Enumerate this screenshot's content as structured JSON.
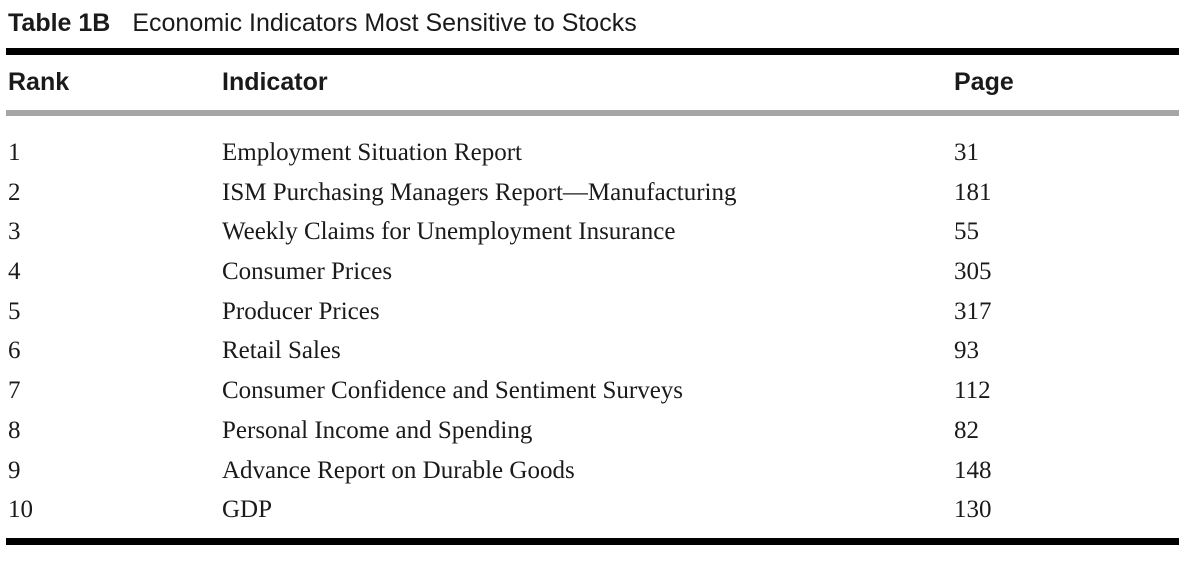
{
  "table": {
    "label": "Table 1B",
    "title": "Economic Indicators Most Sensitive to Stocks",
    "columns": {
      "rank": "Rank",
      "indicator": "Indicator",
      "page": "Page"
    },
    "rows": [
      {
        "rank": "1",
        "indicator": "Employment Situation Report",
        "page": "31"
      },
      {
        "rank": "2",
        "indicator": "ISM Purchasing Managers Report—Manufacturing",
        "page": "181"
      },
      {
        "rank": "3",
        "indicator": "Weekly Claims for Unemployment Insurance",
        "page": "55"
      },
      {
        "rank": "4",
        "indicator": "Consumer Prices",
        "page": "305"
      },
      {
        "rank": "5",
        "indicator": "Producer Prices",
        "page": "317"
      },
      {
        "rank": "6",
        "indicator": "Retail Sales",
        "page": "93"
      },
      {
        "rank": "7",
        "indicator": "Consumer Confidence and Sentiment Surveys",
        "page": "112"
      },
      {
        "rank": "8",
        "indicator": "Personal Income and Spending",
        "page": "82"
      },
      {
        "rank": "9",
        "indicator": "Advance Report on Durable Goods",
        "page": "148"
      },
      {
        "rank": "10",
        "indicator": "GDP",
        "page": "130"
      }
    ]
  }
}
